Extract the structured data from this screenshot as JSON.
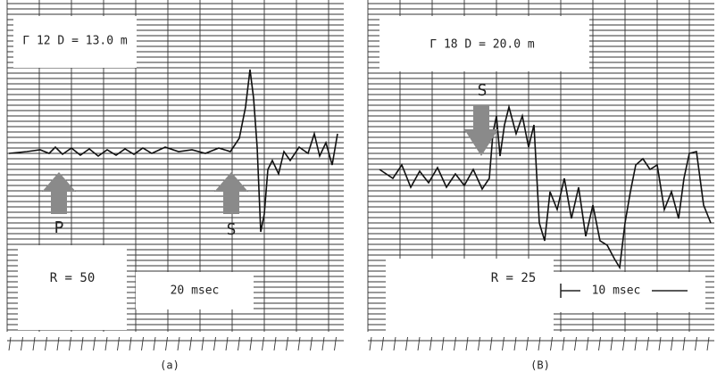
{
  "panels": [
    {
      "header": "Γ 12   D = 13.0 m",
      "arrows": [
        "P",
        "S"
      ],
      "r_label": "R = 50",
      "scale": "20 msec",
      "caption": "(a)"
    },
    {
      "header": "Γ 18   D = 20.0 m",
      "arrows": [
        "S"
      ],
      "r_label": "R = 25",
      "scale": "10 msec",
      "caption": "(B)"
    }
  ]
}
